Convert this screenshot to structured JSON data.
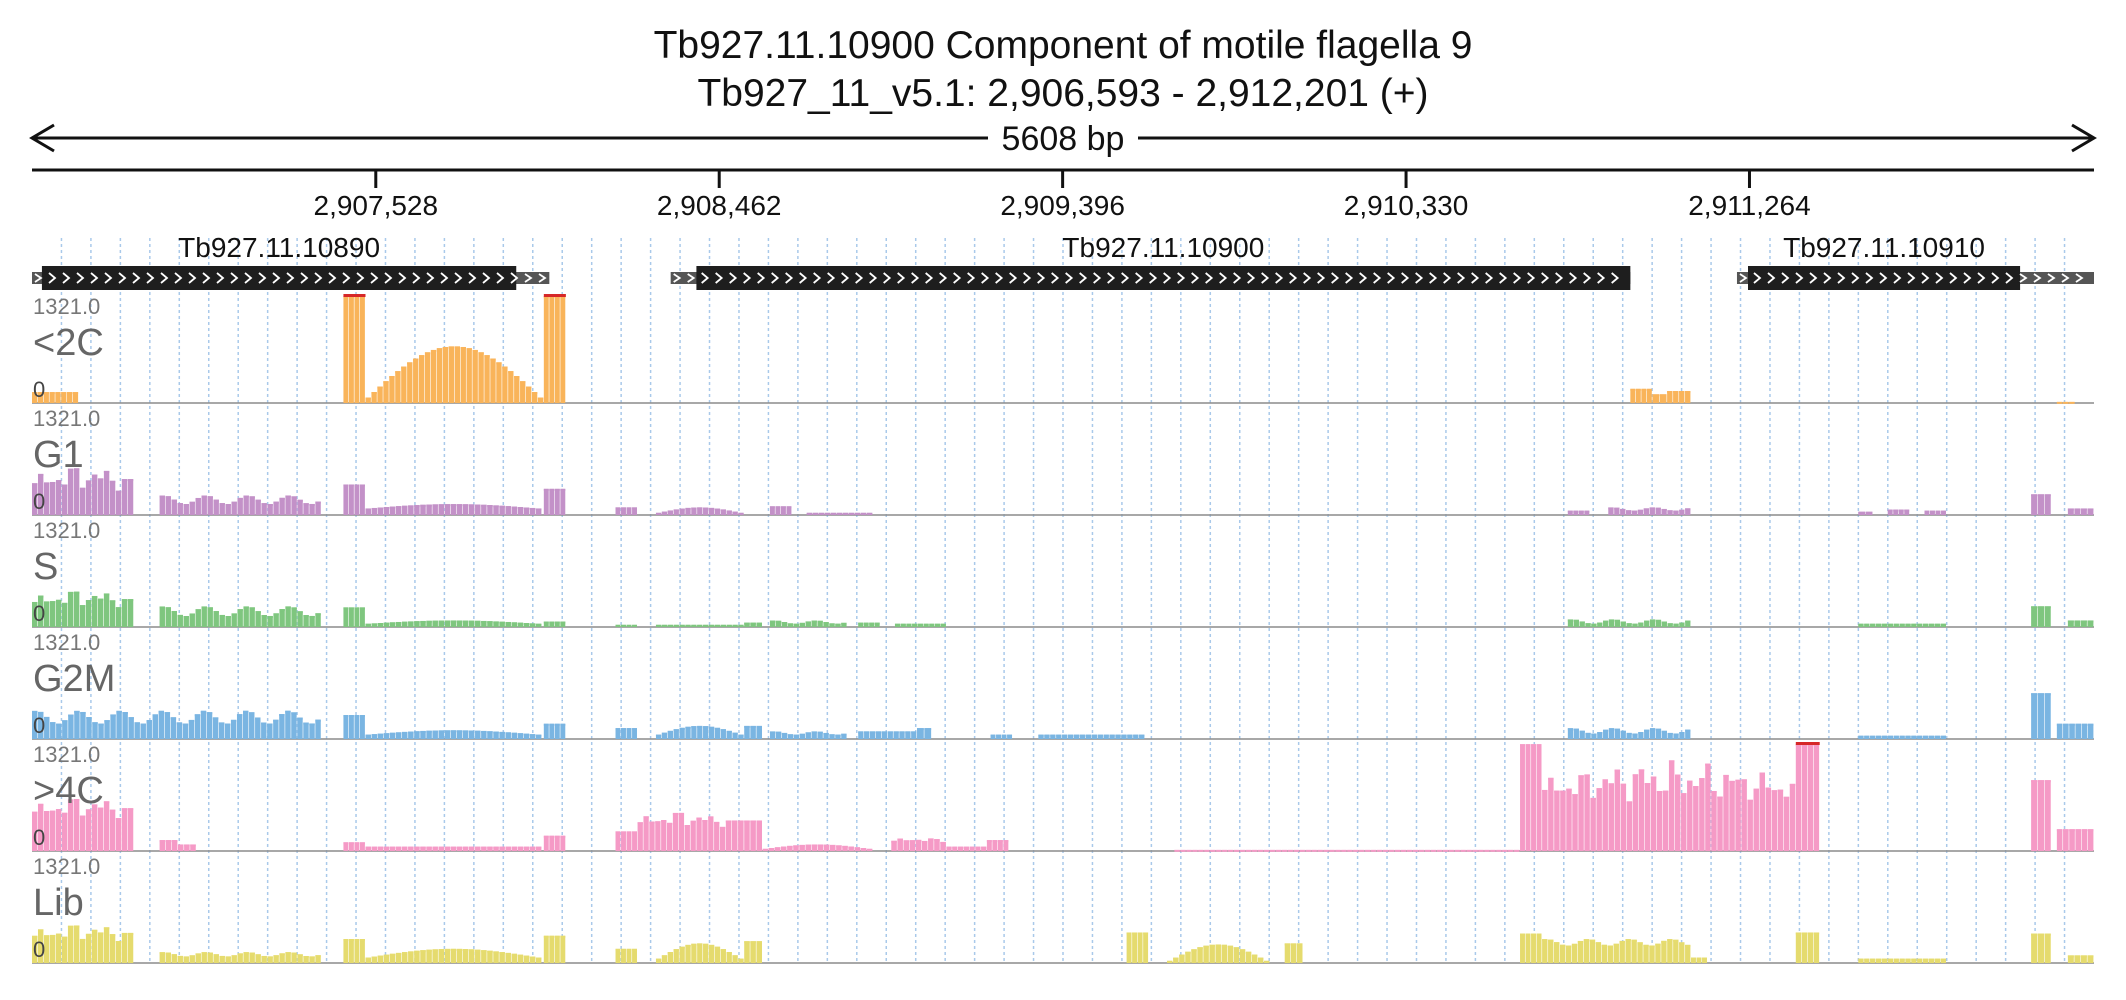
{
  "title": {
    "line1": "Tb927.11.10900  Component of motile flagella 9",
    "line2": "Tb927_11_v5.1: 2,906,593 - 2,912,201 (+)"
  },
  "span_label": "5608 bp",
  "region": {
    "start": 2906593,
    "end": 2912201
  },
  "ruler_ticks": [
    {
      "position": 2907528,
      "label": "2,907,528"
    },
    {
      "position": 2908462,
      "label": "2,908,462"
    },
    {
      "position": 2909396,
      "label": "2,909,396"
    },
    {
      "position": 2910330,
      "label": "2,910,330"
    },
    {
      "position": 2911264,
      "label": "2,911,264"
    }
  ],
  "genes": [
    {
      "name": "Tb927.11.10890",
      "utr_start": 2906593,
      "cds_start": 2906620,
      "cds_end": 2907910,
      "utr_end": 2908000,
      "strand": "+"
    },
    {
      "name": "Tb927.11.10900",
      "utr_start": 2908330,
      "cds_start": 2908400,
      "cds_end": 2910940,
      "utr_end": 2910940,
      "strand": "+"
    },
    {
      "name": "Tb927.11.10910",
      "utr_start": 2911230,
      "cds_start": 2911260,
      "cds_end": 2912000,
      "utr_end": 2912201,
      "strand": "+"
    }
  ],
  "track_max_label": "1321.0",
  "track_min_label": "0",
  "tracks": [
    {
      "name": "<2C",
      "color": "#f9b45a",
      "segments": [
        {
          "start": 2906593,
          "end": 2906720,
          "level": 0.1
        },
        {
          "start": 2907440,
          "end": 2907500,
          "level": 0.98,
          "clipped": true
        },
        {
          "start": 2907500,
          "end": 2907985,
          "shape": "arc",
          "edge": 0.05,
          "peak": 0.52
        },
        {
          "start": 2907985,
          "end": 2908045,
          "level": 0.98,
          "clipped": true
        },
        {
          "start": 2910940,
          "end": 2911000,
          "level": 0.13
        },
        {
          "start": 2911000,
          "end": 2911040,
          "level": 0.08
        },
        {
          "start": 2911040,
          "end": 2911105,
          "level": 0.11
        },
        {
          "start": 2912100,
          "end": 2912150,
          "level": 0.01
        }
      ]
    },
    {
      "name": "G1",
      "color": "#c391c8",
      "segments": [
        {
          "start": 2906593,
          "end": 2906870,
          "shape": "peaks",
          "base": 0.22,
          "peak": 0.48
        },
        {
          "start": 2906940,
          "end": 2907380,
          "shape": "wavy",
          "base": 0.1,
          "peak": 0.18
        },
        {
          "start": 2907440,
          "end": 2907500,
          "level": 0.28
        },
        {
          "start": 2907500,
          "end": 2907980,
          "shape": "arc",
          "edge": 0.06,
          "peak": 0.1
        },
        {
          "start": 2907985,
          "end": 2908045,
          "level": 0.24
        },
        {
          "start": 2908180,
          "end": 2908240,
          "level": 0.07
        },
        {
          "start": 2908290,
          "end": 2908530,
          "shape": "arc",
          "edge": 0.02,
          "peak": 0.07
        },
        {
          "start": 2908600,
          "end": 2908660,
          "level": 0.08
        },
        {
          "start": 2908700,
          "end": 2908880,
          "level": 0.02
        },
        {
          "start": 2910770,
          "end": 2910830,
          "level": 0.04
        },
        {
          "start": 2910880,
          "end": 2911105,
          "shape": "wavy",
          "base": 0.04,
          "peak": 0.07
        },
        {
          "start": 2911560,
          "end": 2911600,
          "level": 0.03
        },
        {
          "start": 2911640,
          "end": 2911700,
          "level": 0.05
        },
        {
          "start": 2911740,
          "end": 2911800,
          "level": 0.04
        },
        {
          "start": 2912030,
          "end": 2912085,
          "level": 0.19
        },
        {
          "start": 2912130,
          "end": 2912201,
          "level": 0.06
        }
      ]
    },
    {
      "name": "S",
      "color": "#7fc67f",
      "segments": [
        {
          "start": 2906593,
          "end": 2906870,
          "shape": "peaks",
          "base": 0.18,
          "peak": 0.36
        },
        {
          "start": 2906940,
          "end": 2907380,
          "shape": "wavy",
          "base": 0.1,
          "peak": 0.19
        },
        {
          "start": 2907440,
          "end": 2907500,
          "level": 0.18
        },
        {
          "start": 2907500,
          "end": 2907980,
          "shape": "arc",
          "edge": 0.03,
          "peak": 0.06
        },
        {
          "start": 2907985,
          "end": 2908045,
          "level": 0.05
        },
        {
          "start": 2908180,
          "end": 2908240,
          "level": 0.02
        },
        {
          "start": 2908290,
          "end": 2908530,
          "level": 0.02
        },
        {
          "start": 2908530,
          "end": 2908580,
          "level": 0.04
        },
        {
          "start": 2908600,
          "end": 2908810,
          "shape": "wavy",
          "base": 0.03,
          "peak": 0.06
        },
        {
          "start": 2908840,
          "end": 2908900,
          "level": 0.04
        },
        {
          "start": 2908940,
          "end": 2909080,
          "level": 0.03
        },
        {
          "start": 2910770,
          "end": 2911105,
          "shape": "wavy",
          "base": 0.03,
          "peak": 0.07
        },
        {
          "start": 2911560,
          "end": 2911800,
          "level": 0.03
        },
        {
          "start": 2912030,
          "end": 2912085,
          "level": 0.19
        },
        {
          "start": 2912130,
          "end": 2912201,
          "level": 0.06
        }
      ]
    },
    {
      "name": "G2M",
      "color": "#7ab5e2",
      "segments": [
        {
          "start": 2906593,
          "end": 2907380,
          "shape": "wavy",
          "base": 0.14,
          "peak": 0.26
        },
        {
          "start": 2907440,
          "end": 2907500,
          "level": 0.22
        },
        {
          "start": 2907500,
          "end": 2907980,
          "shape": "arc",
          "edge": 0.04,
          "peak": 0.08
        },
        {
          "start": 2907985,
          "end": 2908045,
          "level": 0.14
        },
        {
          "start": 2908180,
          "end": 2908240,
          "level": 0.1
        },
        {
          "start": 2908290,
          "end": 2908530,
          "shape": "arc",
          "edge": 0.04,
          "peak": 0.12
        },
        {
          "start": 2908530,
          "end": 2908580,
          "level": 0.12
        },
        {
          "start": 2908600,
          "end": 2908810,
          "shape": "wavy",
          "base": 0.04,
          "peak": 0.07
        },
        {
          "start": 2908840,
          "end": 2909000,
          "level": 0.07
        },
        {
          "start": 2909000,
          "end": 2909040,
          "level": 0.1
        },
        {
          "start": 2909200,
          "end": 2909260,
          "level": 0.04
        },
        {
          "start": 2909330,
          "end": 2909620,
          "level": 0.04
        },
        {
          "start": 2910770,
          "end": 2911105,
          "shape": "wavy",
          "base": 0.05,
          "peak": 0.1
        },
        {
          "start": 2911560,
          "end": 2911800,
          "level": 0.03
        },
        {
          "start": 2912030,
          "end": 2912085,
          "level": 0.42
        },
        {
          "start": 2912100,
          "end": 2912201,
          "level": 0.14
        }
      ]
    },
    {
      "name": ">4C",
      "color": "#f59ac6",
      "segments": [
        {
          "start": 2906593,
          "end": 2906870,
          "shape": "peaks",
          "base": 0.3,
          "peak": 0.52
        },
        {
          "start": 2906940,
          "end": 2906990,
          "level": 0.1
        },
        {
          "start": 2906990,
          "end": 2907040,
          "level": 0.06
        },
        {
          "start": 2907440,
          "end": 2907500,
          "level": 0.08
        },
        {
          "start": 2907500,
          "end": 2907980,
          "level": 0.04
        },
        {
          "start": 2907985,
          "end": 2908045,
          "level": 0.14
        },
        {
          "start": 2908180,
          "end": 2908240,
          "level": 0.18
        },
        {
          "start": 2908240,
          "end": 2908480,
          "shape": "peaks",
          "base": 0.22,
          "peak": 0.38
        },
        {
          "start": 2908480,
          "end": 2908580,
          "level": 0.28
        },
        {
          "start": 2908580,
          "end": 2908880,
          "shape": "arc",
          "edge": 0.02,
          "peak": 0.06
        },
        {
          "start": 2908930,
          "end": 2909080,
          "shape": "peaks",
          "base": 0.08,
          "peak": 0.13
        },
        {
          "start": 2909080,
          "end": 2909190,
          "level": 0.04
        },
        {
          "start": 2909190,
          "end": 2909250,
          "level": 0.1
        },
        {
          "start": 2909700,
          "end": 2910640,
          "level": 0.01
        },
        {
          "start": 2910640,
          "end": 2910700,
          "level": 0.98
        },
        {
          "start": 2910700,
          "end": 2911390,
          "shape": "peaks",
          "base": 0.45,
          "peak": 0.85
        },
        {
          "start": 2911390,
          "end": 2911455,
          "level": 0.98,
          "clipped": true
        },
        {
          "start": 2912030,
          "end": 2912085,
          "level": 0.65
        },
        {
          "start": 2912100,
          "end": 2912201,
          "level": 0.2
        }
      ]
    },
    {
      "name": "Lib",
      "color": "#e5db6e",
      "segments": [
        {
          "start": 2906593,
          "end": 2906870,
          "shape": "peaks",
          "base": 0.2,
          "peak": 0.38
        },
        {
          "start": 2906940,
          "end": 2907380,
          "shape": "wavy",
          "base": 0.06,
          "peak": 0.1
        },
        {
          "start": 2907440,
          "end": 2907500,
          "level": 0.22
        },
        {
          "start": 2907500,
          "end": 2907980,
          "shape": "arc",
          "edge": 0.05,
          "peak": 0.13
        },
        {
          "start": 2907985,
          "end": 2908045,
          "level": 0.25
        },
        {
          "start": 2908180,
          "end": 2908240,
          "level": 0.13
        },
        {
          "start": 2908290,
          "end": 2908530,
          "shape": "arc",
          "edge": 0.04,
          "peak": 0.18
        },
        {
          "start": 2908530,
          "end": 2908580,
          "level": 0.2
        },
        {
          "start": 2909570,
          "end": 2909630,
          "level": 0.28
        },
        {
          "start": 2909680,
          "end": 2909960,
          "shape": "arc",
          "edge": 0.02,
          "peak": 0.17
        },
        {
          "start": 2910000,
          "end": 2910050,
          "level": 0.18
        },
        {
          "start": 2910640,
          "end": 2910700,
          "level": 0.27
        },
        {
          "start": 2910700,
          "end": 2911105,
          "shape": "wavy",
          "base": 0.16,
          "peak": 0.22
        },
        {
          "start": 2911105,
          "end": 2911150,
          "level": 0.05
        },
        {
          "start": 2911390,
          "end": 2911455,
          "level": 0.28
        },
        {
          "start": 2911560,
          "end": 2911800,
          "level": 0.04
        },
        {
          "start": 2912030,
          "end": 2912085,
          "level": 0.27
        },
        {
          "start": 2912130,
          "end": 2912201,
          "level": 0.07
        }
      ]
    }
  ]
}
